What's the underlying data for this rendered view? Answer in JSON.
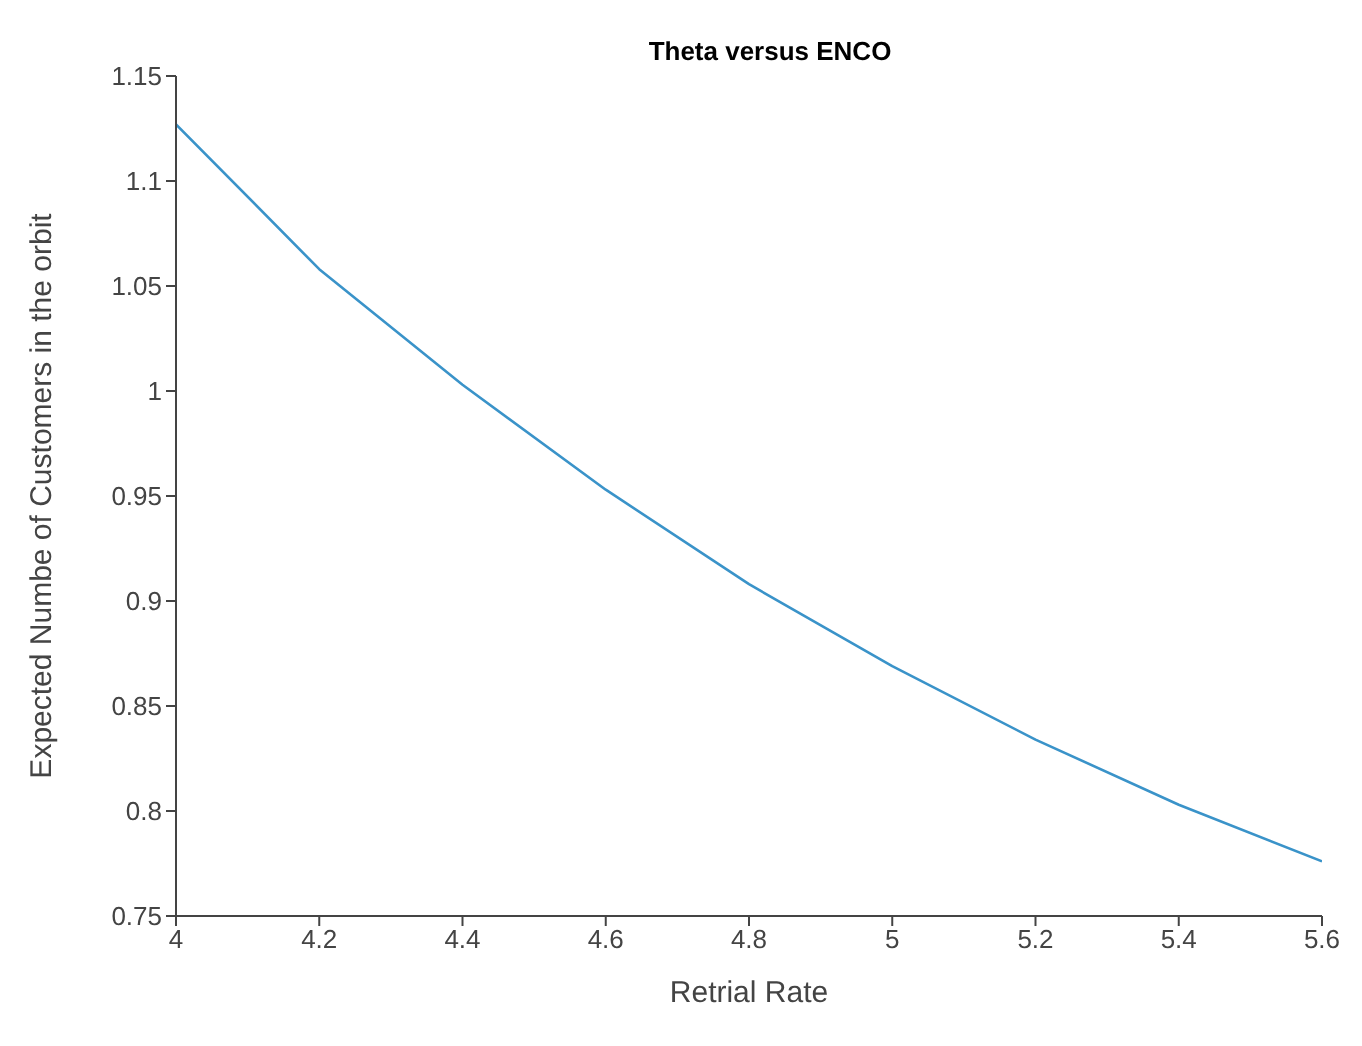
{
  "chart_data": {
    "type": "line",
    "title": "Theta versus ENCO",
    "xlabel": "Retrial Rate",
    "ylabel": "Expected Numbe of Customers in the orbit",
    "x": [
      4,
      4.2,
      4.4,
      4.6,
      4.8,
      5,
      5.2,
      5.4,
      5.6
    ],
    "series": [
      {
        "color": "#3a93c9",
        "values": [
          1.127,
          1.058,
          1.003,
          0.953,
          0.908,
          0.869,
          0.834,
          0.803,
          0.776
        ]
      }
    ],
    "xlim": [
      4,
      5.6
    ],
    "xticks": [
      4,
      4.2,
      4.4,
      4.6,
      4.8,
      5,
      5.2,
      5.4,
      5.6
    ],
    "ylim": [
      0.75,
      1.15
    ],
    "yticks": [
      0.75,
      0.8,
      0.85,
      0.9,
      0.95,
      1,
      1.05,
      1.1,
      1.15
    ],
    "grid": false,
    "marker": "none",
    "line_style": "solid"
  }
}
